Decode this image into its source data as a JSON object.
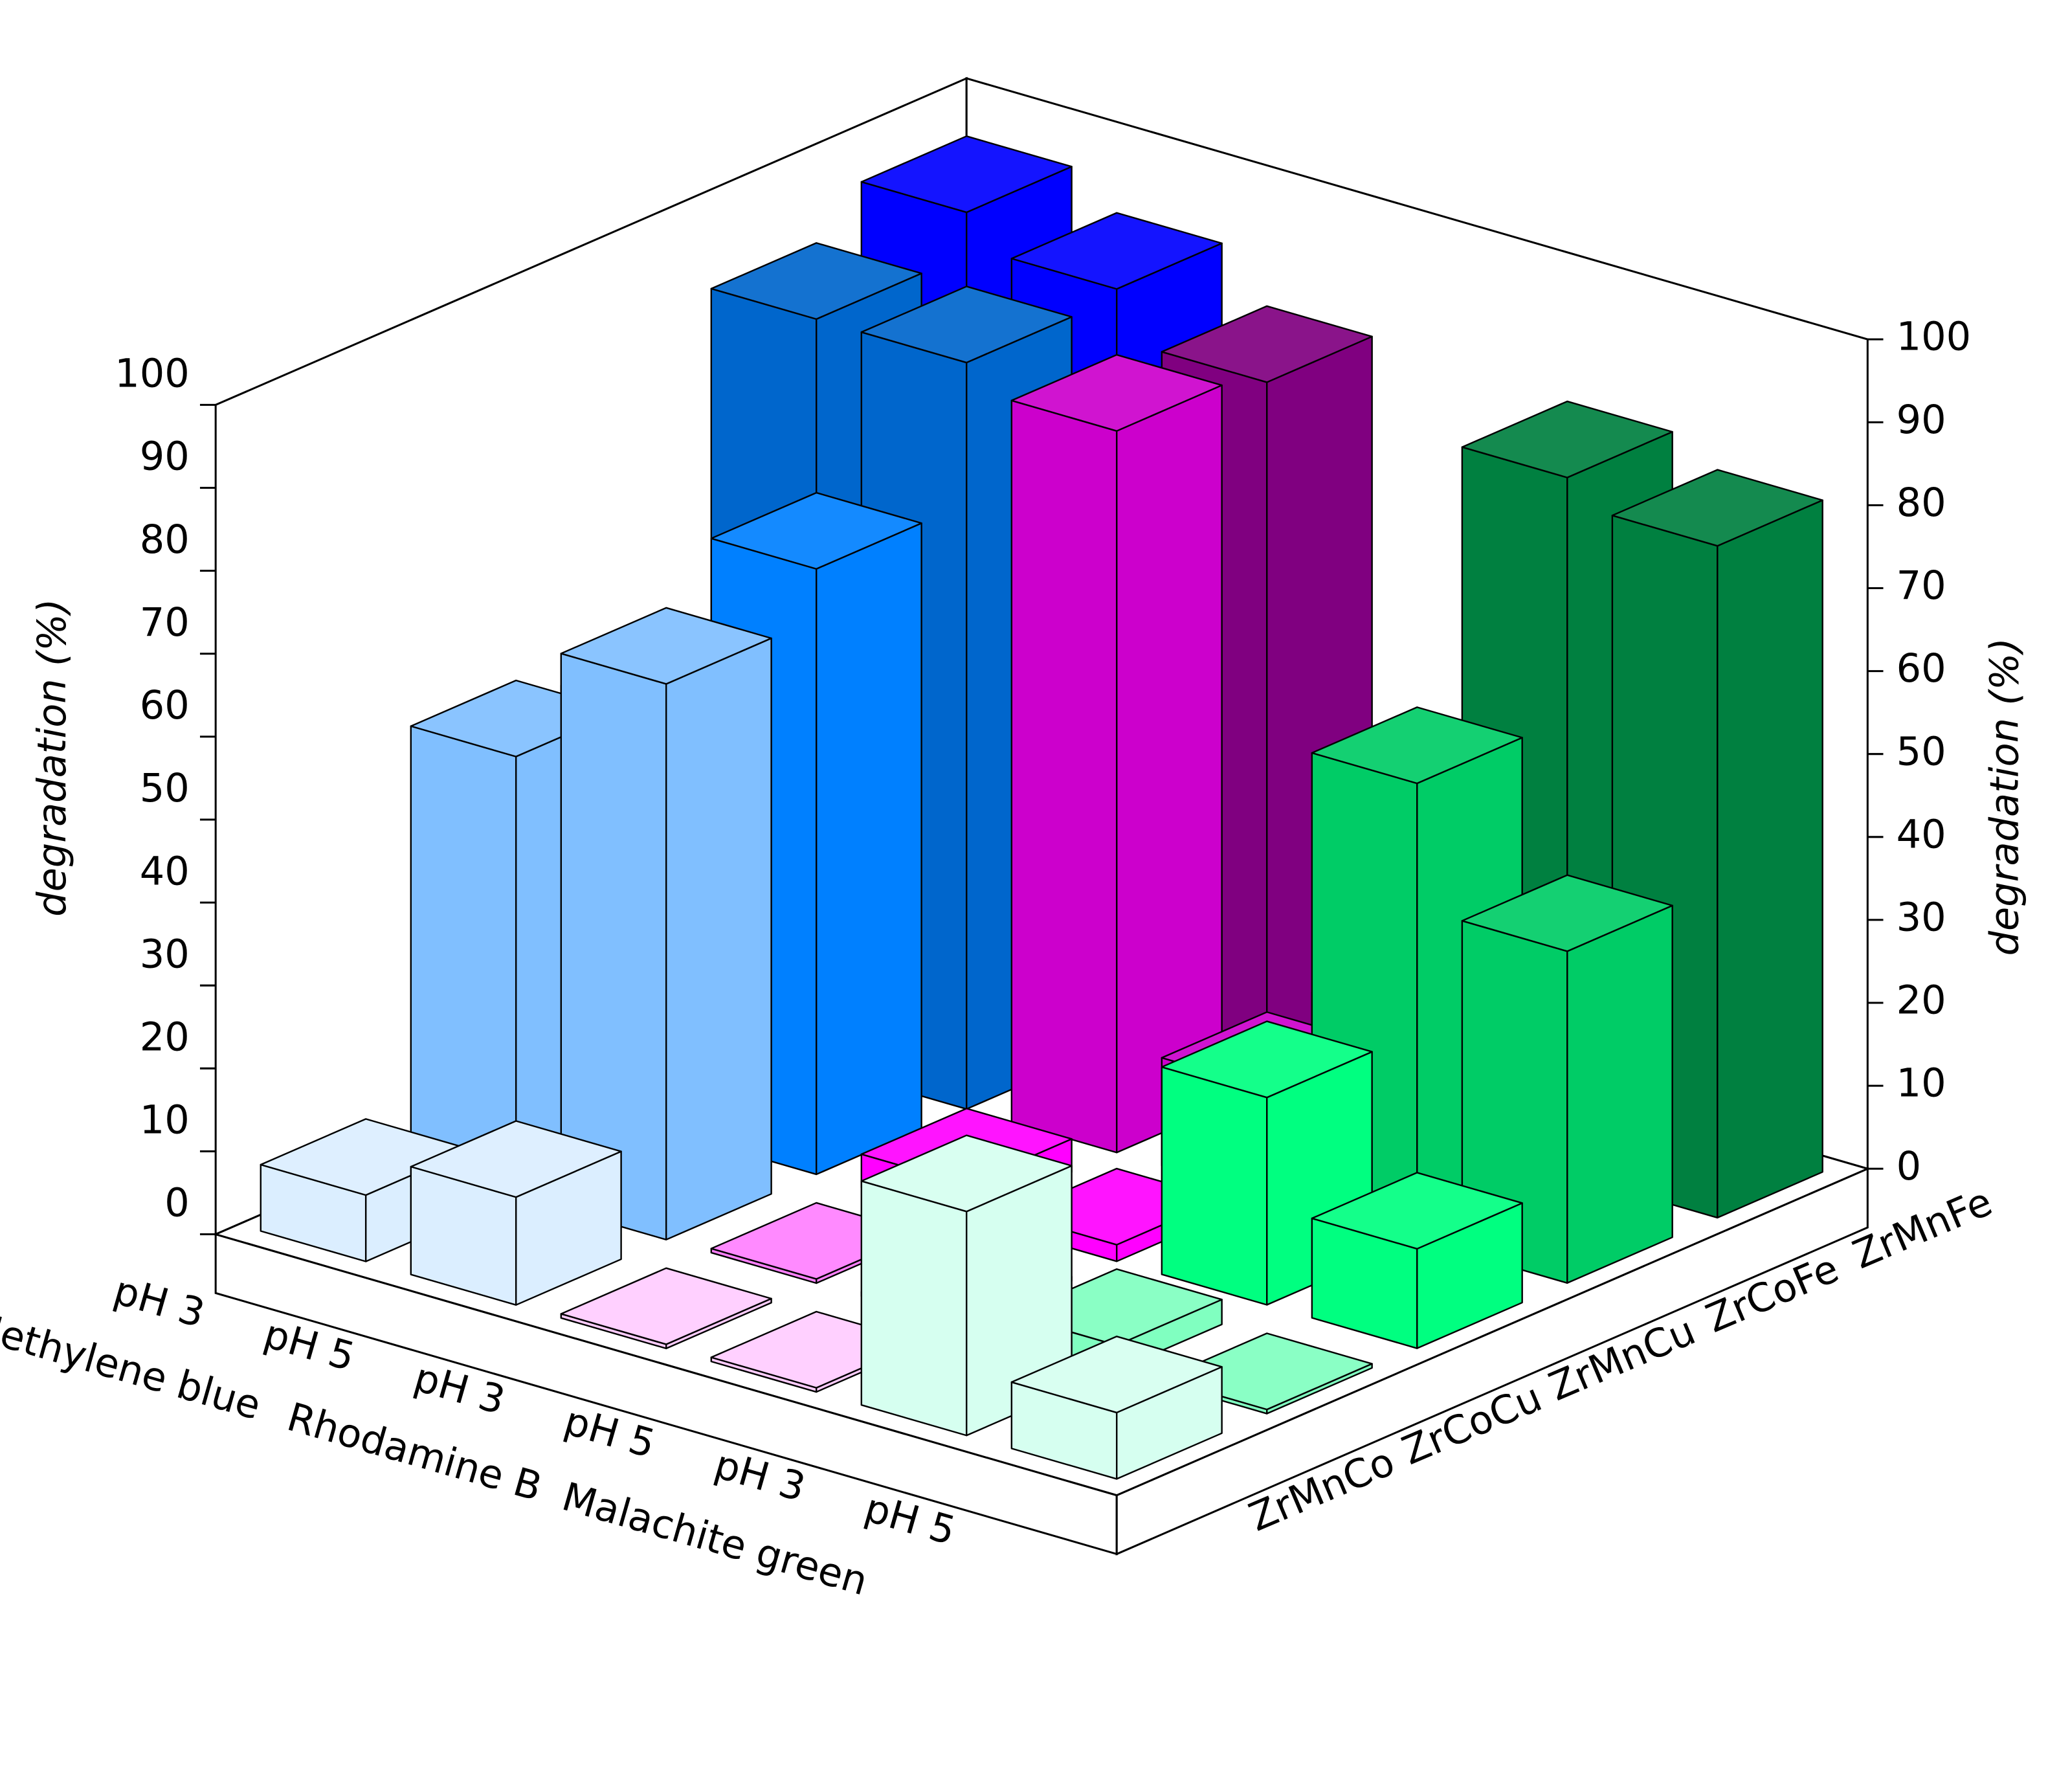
{
  "chart_data": {
    "type": "bar3d",
    "zlabel": "degradation (%)",
    "categories": [
      "pH 3",
      "pH 5",
      "pH 3",
      "pH 5",
      "pH 3",
      "pH 5"
    ],
    "groups": [
      "Methylene blue",
      "Rhodamine B",
      "Malachite green"
    ],
    "zlim": [
      0,
      100
    ],
    "zticks": [
      0,
      10,
      20,
      30,
      40,
      50,
      60,
      70,
      80,
      90,
      100
    ],
    "series": [
      {
        "name": "ZrMnCo",
        "values": [
          8,
          13,
          0.5,
          0.5,
          27,
          8
        ],
        "colors": [
          "#dbeeff",
          "#dbeeff",
          "#ffccff",
          "#ffccff",
          "#d6fff0",
          "#d6fff0"
        ]
      },
      {
        "name": "ZrCoCu",
        "values": [
          53,
          67,
          0.5,
          0.5,
          3,
          0.5
        ],
        "colors": [
          "#80bfff",
          "#80bfff",
          "#ff80ff",
          "#ff80ff",
          "#80ffc0",
          "#80ffc0"
        ]
      },
      {
        "name": "ZrMnCu",
        "values": [
          50,
          73,
          4,
          2,
          25,
          12
        ],
        "colors": [
          "#0080ff",
          "#0080ff",
          "#ff00ff",
          "#ff00ff",
          "#00ff80",
          "#00ff80"
        ]
      },
      {
        "name": "ZrCoFe",
        "values": [
          90,
          90,
          87,
          13,
          55,
          40
        ],
        "colors": [
          "#0066cc",
          "#0066cc",
          "#cc00cc",
          "#cc00cc",
          "#00cc66",
          "#00cc66"
        ]
      },
      {
        "name": "ZrMnFe",
        "values": [
          95,
          91,
          85,
          13,
          84,
          81
        ],
        "colors": [
          "#0000ff",
          "#0000ff",
          "#800080",
          "#800080",
          "#008040",
          "#008040"
        ]
      }
    ]
  }
}
